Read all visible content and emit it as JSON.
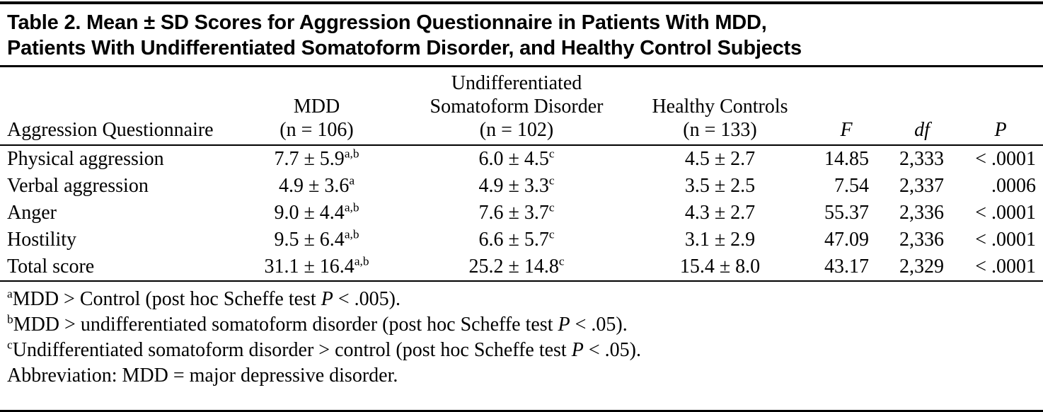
{
  "title": {
    "line1": "Table 2. Mean ± SD Scores for Aggression Questionnaire in Patients With MDD,",
    "line2": "Patients With Undifferentiated Somatoform Disorder, and Healthy Control Subjects"
  },
  "headers": {
    "row_label": "Aggression Questionnaire",
    "mdd_line1": "MDD",
    "mdd_line2": "(n = 106)",
    "usd_line1": "Undifferentiated",
    "usd_line2": "Somatoform Disorder",
    "usd_line3": "(n = 102)",
    "hc_line1": "Healthy Controls",
    "hc_line2": "(n = 133)",
    "f": "F",
    "df": "df",
    "p": "P"
  },
  "rows": [
    {
      "label": "Physical aggression",
      "mdd": "7.7 ± 5.9",
      "mdd_sup": "a,b",
      "usd": "6.0 ± 4.5",
      "usd_sup": "c",
      "hc": "4.5 ± 2.7",
      "f": "14.85",
      "df": "2,333",
      "p": "< .0001"
    },
    {
      "label": "Verbal aggression",
      "mdd": "4.9 ± 3.6",
      "mdd_sup": "a",
      "usd": "4.9 ± 3.3",
      "usd_sup": "c",
      "hc": "3.5 ± 2.5",
      "f": "7.54",
      "df": "2,337",
      "p": ".0006"
    },
    {
      "label": "Anger",
      "mdd": "9.0 ± 4.4",
      "mdd_sup": "a,b",
      "usd": "7.6 ± 3.7",
      "usd_sup": "c",
      "hc": "4.3 ± 2.7",
      "f": "55.37",
      "df": "2,336",
      "p": "< .0001"
    },
    {
      "label": "Hostility",
      "mdd": "9.5 ± 6.4",
      "mdd_sup": "a,b",
      "usd": "6.6 ± 5.7",
      "usd_sup": "c",
      "hc": "3.1 ± 2.9",
      "f": "47.09",
      "df": "2,336",
      "p": "< .0001"
    },
    {
      "label": "Total score",
      "mdd": "31.1 ± 16.4",
      "mdd_sup": "a,b",
      "usd": "25.2 ± 14.8",
      "usd_sup": "c",
      "hc": "15.4 ± 8.0",
      "f": "43.17",
      "df": "2,329",
      "p": "< .0001"
    }
  ],
  "footnotes": [
    {
      "marker": "a",
      "pre": "MDD > Control (post hoc Scheffe test ",
      "italic": "P",
      "post": " < .005)."
    },
    {
      "marker": "b",
      "pre": "MDD > undifferentiated somatoform disorder (post hoc Scheffe test ",
      "italic": "P",
      "post": " < .05)."
    },
    {
      "marker": "c",
      "pre": "Undifferentiated somatoform disorder > control (post hoc Scheffe test ",
      "italic": "P",
      "post": " < .05)."
    },
    {
      "marker": "",
      "pre": "Abbreviation: MDD = major depressive disorder.",
      "italic": "",
      "post": ""
    }
  ]
}
